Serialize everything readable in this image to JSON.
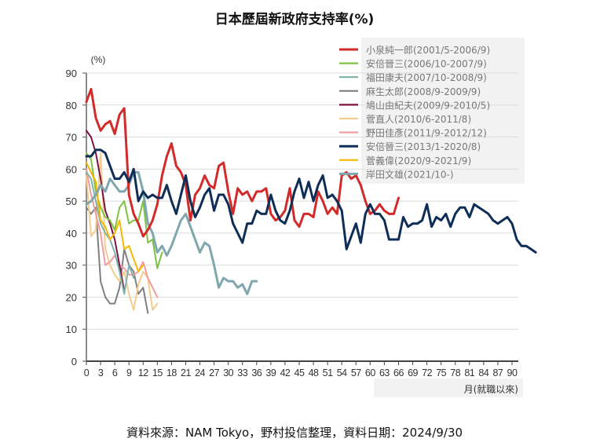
{
  "chart_data": {
    "type": "line",
    "title": "日本歷屆新政府支持率(%)",
    "ylabel": "(%)",
    "xlabel": "月(就職以來)",
    "ylim": [
      0,
      90
    ],
    "xlim": [
      0,
      90
    ],
    "yticks": [
      0,
      10,
      20,
      30,
      40,
      50,
      60,
      70,
      80,
      90
    ],
    "xticks": [
      0,
      3,
      6,
      9,
      12,
      15,
      18,
      21,
      24,
      27,
      30,
      33,
      36,
      39,
      42,
      45,
      48,
      51,
      54,
      57,
      60,
      63,
      66,
      69,
      72,
      75,
      78,
      81,
      84,
      87,
      90
    ],
    "grid": true,
    "legend_position": "top-right",
    "series": [
      {
        "name": "小泉純一郎(2001/5-2006/9)",
        "color": "#d32a2a",
        "width": 3,
        "values": [
          81,
          85,
          76,
          72,
          74,
          75,
          71,
          77,
          79,
          52,
          46,
          43,
          39,
          41,
          44,
          49,
          58,
          64,
          68,
          61,
          59,
          55,
          44,
          52,
          54,
          58,
          55,
          54,
          61,
          62,
          53,
          46,
          54,
          52,
          53,
          50,
          53,
          53,
          54,
          46,
          44,
          45,
          47,
          54,
          44,
          42,
          46,
          46,
          45,
          53,
          50,
          46,
          48,
          46,
          58,
          59,
          57,
          58,
          55,
          50,
          46,
          47,
          49,
          47,
          46,
          46,
          51
        ]
      },
      {
        "name": "安倍晉三(2006/10-2007/9)",
        "color": "#7dc242",
        "width": 2,
        "values": [
          65,
          63,
          53,
          48,
          45,
          44,
          41,
          48,
          50,
          43,
          44,
          44,
          50,
          37,
          38,
          29,
          34
        ]
      },
      {
        "name": "福田康夫(2007/10-2008/9)",
        "color": "#7fb2aa",
        "width": 2,
        "values": [
          59,
          57,
          50,
          43,
          40,
          38,
          34,
          28,
          21,
          30,
          26
        ]
      },
      {
        "name": "麻生太郎(2008/9-2009/9)",
        "color": "#808080",
        "width": 2,
        "values": [
          48,
          46,
          48,
          25,
          20,
          18,
          18,
          23,
          35,
          30,
          28,
          21,
          23,
          15
        ]
      },
      {
        "name": "鳩山由紀夫(2009/9-2010/5)",
        "color": "#7a1244",
        "width": 2,
        "values": [
          72,
          70,
          65,
          57,
          47,
          43,
          38,
          30,
          22
        ]
      },
      {
        "name": "菅直人(2010/6-2011/8)",
        "color": "#f6cb8e",
        "width": 2,
        "values": [
          58,
          39,
          41,
          65,
          35,
          30,
          27,
          25,
          28,
          21,
          16,
          24,
          28,
          26,
          16,
          18
        ]
      },
      {
        "name": "野田佳彥(2011/9-2012/12)",
        "color": "#f09da1",
        "width": 2,
        "values": [
          60,
          52,
          46,
          40,
          30,
          31,
          33,
          30,
          29,
          27,
          27,
          28,
          31,
          26,
          23,
          20
        ]
      },
      {
        "name": "安倍晉三(2013/1-2020/8)",
        "color": "#0f2e57",
        "width": 3,
        "values": [
          64,
          64,
          66,
          66,
          65,
          61,
          57,
          57,
          59,
          56,
          60,
          50,
          53,
          51,
          52,
          51,
          51,
          55,
          50,
          46,
          52,
          58,
          50,
          45,
          48,
          52,
          54,
          47,
          52,
          52,
          49,
          43,
          40,
          37,
          43,
          43,
          47,
          46,
          46,
          52,
          47,
          44,
          43,
          47,
          53,
          57,
          51,
          56,
          50,
          55,
          58,
          51,
          52,
          50,
          47,
          35,
          39,
          43,
          37,
          46,
          49,
          46,
          46,
          44,
          38,
          38,
          38,
          45,
          42,
          43,
          43,
          44,
          49,
          42,
          45,
          44,
          46,
          42,
          46,
          48,
          48,
          45,
          49,
          48,
          47,
          46,
          44,
          43,
          44,
          45,
          43,
          38,
          36,
          36,
          35,
          34
        ]
      },
      {
        "name": "菅義偉(2020/9-2021/9)",
        "color": "#f5b800",
        "width": 2,
        "values": [
          62,
          59,
          56,
          44,
          42,
          38,
          40,
          44,
          35,
          36,
          32,
          28,
          30
        ]
      },
      {
        "name": "岸田文雄(2021/10-)",
        "color": "#7fa7ad",
        "width": 3,
        "values": [
          49,
          50,
          52,
          55,
          53,
          57,
          55,
          53,
          53,
          55,
          59,
          59,
          53,
          43,
          40,
          34,
          36,
          33,
          36,
          40,
          44,
          46,
          42,
          38,
          34,
          37,
          36,
          30,
          23,
          26,
          25,
          25,
          23,
          24,
          21,
          25,
          25
        ]
      }
    ]
  },
  "footer": "資料來源：NAM Tokyo，野村投信整理，資料日期：2024/9/30"
}
